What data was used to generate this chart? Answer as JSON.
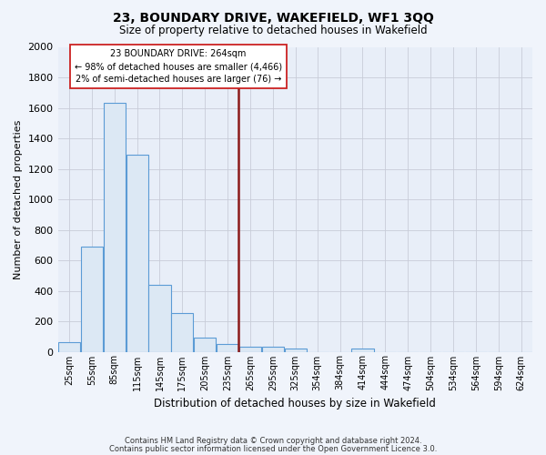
{
  "title": "23, BOUNDARY DRIVE, WAKEFIELD, WF1 3QQ",
  "subtitle": "Size of property relative to detached houses in Wakefield",
  "xlabel": "Distribution of detached houses by size in Wakefield",
  "ylabel": "Number of detached properties",
  "bar_color": "#dce8f4",
  "bar_edge_color": "#5b9bd5",
  "background_color": "#e8eef8",
  "grid_color": "#c8ccd8",
  "annotation_line_color": "#8b1a1a",
  "annotation_box_edge_color": "#cc2222",
  "annotation_text": "23 BOUNDARY DRIVE: 264sqm\n← 98% of detached houses are smaller (4,466)\n2% of semi-detached houses are larger (76) →",
  "property_size": 264,
  "ylim": [
    0,
    2000
  ],
  "yticks": [
    0,
    200,
    400,
    600,
    800,
    1000,
    1200,
    1400,
    1600,
    1800,
    2000
  ],
  "bin_labels": [
    "25sqm",
    "55sqm",
    "85sqm",
    "115sqm",
    "145sqm",
    "175sqm",
    "205sqm",
    "235sqm",
    "265sqm",
    "295sqm",
    "325sqm",
    "354sqm",
    "384sqm",
    "414sqm",
    "444sqm",
    "474sqm",
    "504sqm",
    "534sqm",
    "564sqm",
    "594sqm",
    "624sqm"
  ],
  "bin_starts": [
    25,
    55,
    85,
    115,
    145,
    175,
    205,
    235,
    265,
    295,
    325,
    354,
    384,
    414,
    444,
    474,
    504,
    534,
    564,
    594,
    624
  ],
  "bin_width": 30,
  "bar_heights": [
    65,
    690,
    1630,
    1290,
    440,
    255,
    95,
    50,
    35,
    30,
    20,
    0,
    0,
    20,
    0,
    0,
    0,
    0,
    0,
    0,
    0
  ],
  "footnote1": "Contains HM Land Registry data © Crown copyright and database right 2024.",
  "footnote2": "Contains public sector information licensed under the Open Government Licence 3.0.",
  "fig_bg": "#f0f4fb"
}
